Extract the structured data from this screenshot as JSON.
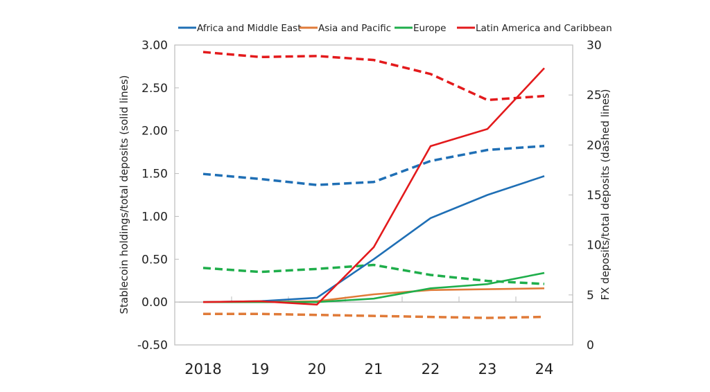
{
  "chart_data": {
    "type": "line",
    "title": "",
    "categories": [
      "2018",
      "19",
      "20",
      "21",
      "22",
      "23",
      "24"
    ],
    "ylabel": "Stablecoin holdings/total deposits (solid lines)",
    "y2label": "FX deposits/total deposits (dashed lines)",
    "ylim": [
      -0.5,
      3.0
    ],
    "y2lim": [
      0,
      30
    ],
    "yticks": [
      "3.00",
      "2.50",
      "2.00",
      "1.50",
      "1.00",
      "0.50",
      "0.00",
      "-0.50"
    ],
    "y2ticks": [
      "30",
      "25",
      "20",
      "15",
      "10",
      "5",
      "0"
    ],
    "legend_position": "top",
    "grid": false,
    "series": [
      {
        "name": "Africa and Middle East",
        "color": "#1f6fb5",
        "solid": [
          0.0,
          0.01,
          0.05,
          0.5,
          0.98,
          1.25,
          1.47
        ],
        "dashed": [
          17.1,
          16.6,
          16.0,
          16.3,
          18.4,
          19.5,
          19.9
        ]
      },
      {
        "name": "Asia and Pacific",
        "color": "#e07b39",
        "solid": [
          0.0,
          0.0,
          0.01,
          0.09,
          0.14,
          0.15,
          0.16
        ],
        "dashed": [
          3.1,
          3.1,
          3.0,
          2.9,
          2.8,
          2.7,
          2.8
        ]
      },
      {
        "name": "Europe",
        "color": "#1fae4b",
        "solid": [
          0.0,
          0.0,
          0.0,
          0.04,
          0.16,
          0.21,
          0.34
        ],
        "dashed": [
          7.7,
          7.3,
          7.6,
          8.0,
          7.0,
          6.4,
          6.1
        ]
      },
      {
        "name": "Latin America and Caribbean",
        "color": "#e31a1c",
        "solid": [
          0.0,
          0.01,
          -0.03,
          0.64,
          1.82,
          2.02,
          2.73
        ],
        "dashed": [
          29.3,
          28.8,
          28.9,
          28.5,
          27.1,
          24.5,
          24.9
        ]
      }
    ]
  }
}
